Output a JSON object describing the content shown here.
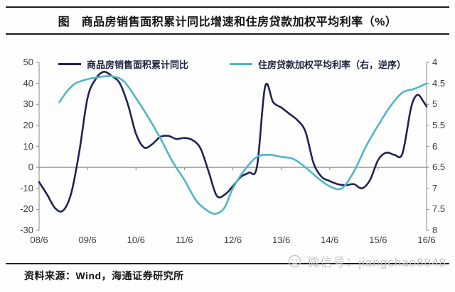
{
  "header": {
    "title": "图　商品房销售面积累计同比增速和住房贷款加权平均利率（%）"
  },
  "legend": [
    {
      "label": "商品房销售面积累计同比",
      "color": "#1f2352"
    },
    {
      "label": "住房贷款加权平均利率（右，逆序）",
      "color": "#4fb6c6"
    }
  ],
  "footer": {
    "source_label": "资料来源：Wind，海通证券研究所"
  },
  "watermark": {
    "icon": "wechat-smiley-icon",
    "text": "微信号：jiangchao8848",
    "color": "#c3c3c3"
  },
  "chart_data": {
    "type": "line",
    "title": "商品房销售面积累计同比增速和住房贷款加权平均利率（%）",
    "x_ticks": [
      "08/6",
      "09/6",
      "10/6",
      "11/6",
      "12/6",
      "13/6",
      "14/6",
      "15/6",
      "16/6"
    ],
    "left_axis": {
      "label": "商品房销售面积累计同比 (%)",
      "ticks": [
        50,
        40,
        30,
        20,
        10,
        0,
        -10,
        -20,
        -30
      ],
      "range": [
        -30,
        50
      ]
    },
    "right_axis": {
      "label": "住房贷款加权平均利率 (%)",
      "ticks": [
        4,
        4.5,
        5,
        5.5,
        6,
        6.5,
        7,
        7.5,
        8
      ],
      "range": [
        4,
        8
      ],
      "inverted": true
    },
    "grid": "zero-line-only",
    "legend_position": "top",
    "series": [
      {
        "name": "商品房销售面积累计同比",
        "axis": "left",
        "color": "#1f2352",
        "points": [
          [
            "08/6",
            -7
          ],
          [
            "08/8",
            -13
          ],
          [
            "08/10",
            -19.5
          ],
          [
            "08/12",
            -20.5
          ],
          [
            "09/2",
            -12
          ],
          [
            "09/4",
            8
          ],
          [
            "09/6",
            33
          ],
          [
            "09/8",
            42
          ],
          [
            "09/10",
            45.5
          ],
          [
            "09/12",
            43.5
          ],
          [
            "10/2",
            40
          ],
          [
            "10/4",
            30
          ],
          [
            "10/6",
            16
          ],
          [
            "10/8",
            9.5
          ],
          [
            "10/10",
            11
          ],
          [
            "10/12",
            14.5
          ],
          [
            "11/2",
            15
          ],
          [
            "11/4",
            13.5
          ],
          [
            "11/6",
            14
          ],
          [
            "11/8",
            13
          ],
          [
            "11/10",
            9
          ],
          [
            "11/12",
            -2
          ],
          [
            "12/2",
            -13.5
          ],
          [
            "12/4",
            -13
          ],
          [
            "12/6",
            -9
          ],
          [
            "12/8",
            -4.5
          ],
          [
            "12/10",
            -2.5
          ],
          [
            "12/12",
            0.5
          ],
          [
            "13/2",
            38.5
          ],
          [
            "13/4",
            31
          ],
          [
            "13/6",
            28.5
          ],
          [
            "13/8",
            25.5
          ],
          [
            "13/10",
            22.5
          ],
          [
            "13/12",
            17
          ],
          [
            "14/2",
            2
          ],
          [
            "14/4",
            -4.5
          ],
          [
            "14/6",
            -6.5
          ],
          [
            "14/8",
            -8
          ],
          [
            "14/10",
            -8.5
          ],
          [
            "14/12",
            -8
          ],
          [
            "15/2",
            -10
          ],
          [
            "15/4",
            -6
          ],
          [
            "15/6",
            3.5
          ],
          [
            "15/8",
            7
          ],
          [
            "15/10",
            6
          ],
          [
            "15/12",
            6.5
          ],
          [
            "16/2",
            27
          ],
          [
            "16/3",
            33
          ],
          [
            "16/4",
            34.5
          ],
          [
            "16/5",
            32
          ],
          [
            "16/6",
            29
          ]
        ]
      },
      {
        "name": "住房贷款加权平均利率（右，逆序）",
        "axis": "right",
        "color": "#4fb6c6",
        "points": [
          [
            "08/11",
            4.95
          ],
          [
            "09/1",
            4.68
          ],
          [
            "09/3",
            4.5
          ],
          [
            "09/6",
            4.4
          ],
          [
            "09/9",
            4.35
          ],
          [
            "09/12",
            4.33
          ],
          [
            "10/3",
            4.45
          ],
          [
            "10/6",
            4.85
          ],
          [
            "10/9",
            5.3
          ],
          [
            "10/12",
            5.8
          ],
          [
            "11/3",
            6.35
          ],
          [
            "11/6",
            6.8
          ],
          [
            "11/9",
            7.3
          ],
          [
            "11/12",
            7.55
          ],
          [
            "12/2",
            7.6
          ],
          [
            "12/4",
            7.45
          ],
          [
            "12/6",
            7.0
          ],
          [
            "12/9",
            6.55
          ],
          [
            "12/12",
            6.25
          ],
          [
            "13/3",
            6.2
          ],
          [
            "13/6",
            6.25
          ],
          [
            "13/9",
            6.3
          ],
          [
            "13/12",
            6.5
          ],
          [
            "14/3",
            6.75
          ],
          [
            "14/6",
            6.95
          ],
          [
            "14/9",
            7.0
          ],
          [
            "14/12",
            6.6
          ],
          [
            "15/3",
            6.0
          ],
          [
            "15/6",
            5.5
          ],
          [
            "15/9",
            5.05
          ],
          [
            "15/12",
            4.72
          ],
          [
            "16/3",
            4.63
          ],
          [
            "16/6",
            4.5
          ]
        ]
      }
    ]
  }
}
